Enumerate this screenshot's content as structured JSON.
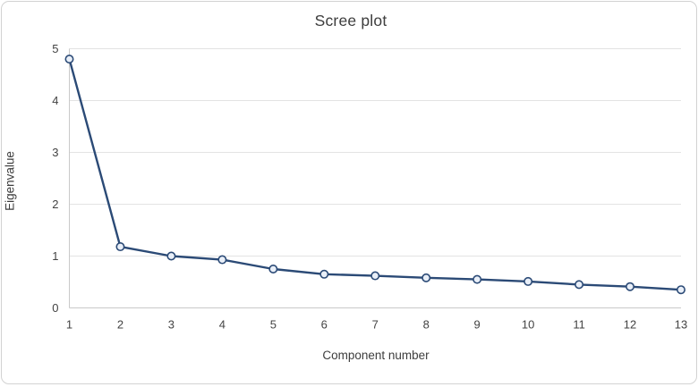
{
  "frame": {
    "background": "#ffffff",
    "border_color": "#d2d2d2"
  },
  "chart_data": {
    "type": "line",
    "title": "Scree plot",
    "xlabel": "Component number",
    "ylabel": "Eigenvalue",
    "categories": [
      1,
      2,
      3,
      4,
      5,
      6,
      7,
      8,
      9,
      10,
      11,
      12,
      13
    ],
    "series": [
      {
        "name": "Eigenvalue",
        "values": [
          4.8,
          1.18,
          1.0,
          0.93,
          0.75,
          0.65,
          0.62,
          0.58,
          0.55,
          0.51,
          0.45,
          0.41,
          0.35
        ]
      }
    ],
    "ylim": [
      0,
      5
    ],
    "yticks": [
      0,
      1,
      2,
      3,
      4,
      5
    ],
    "grid": "horizontal-major",
    "legend": "none",
    "marker": "open-circle",
    "colors": {
      "line": "#2b4a76",
      "marker_fill": "#e9eff8",
      "gridline": "#e3e3e3",
      "axis_line": "#c9c9c9",
      "tick_label": "#434343",
      "title": "#3d3d3d"
    }
  }
}
